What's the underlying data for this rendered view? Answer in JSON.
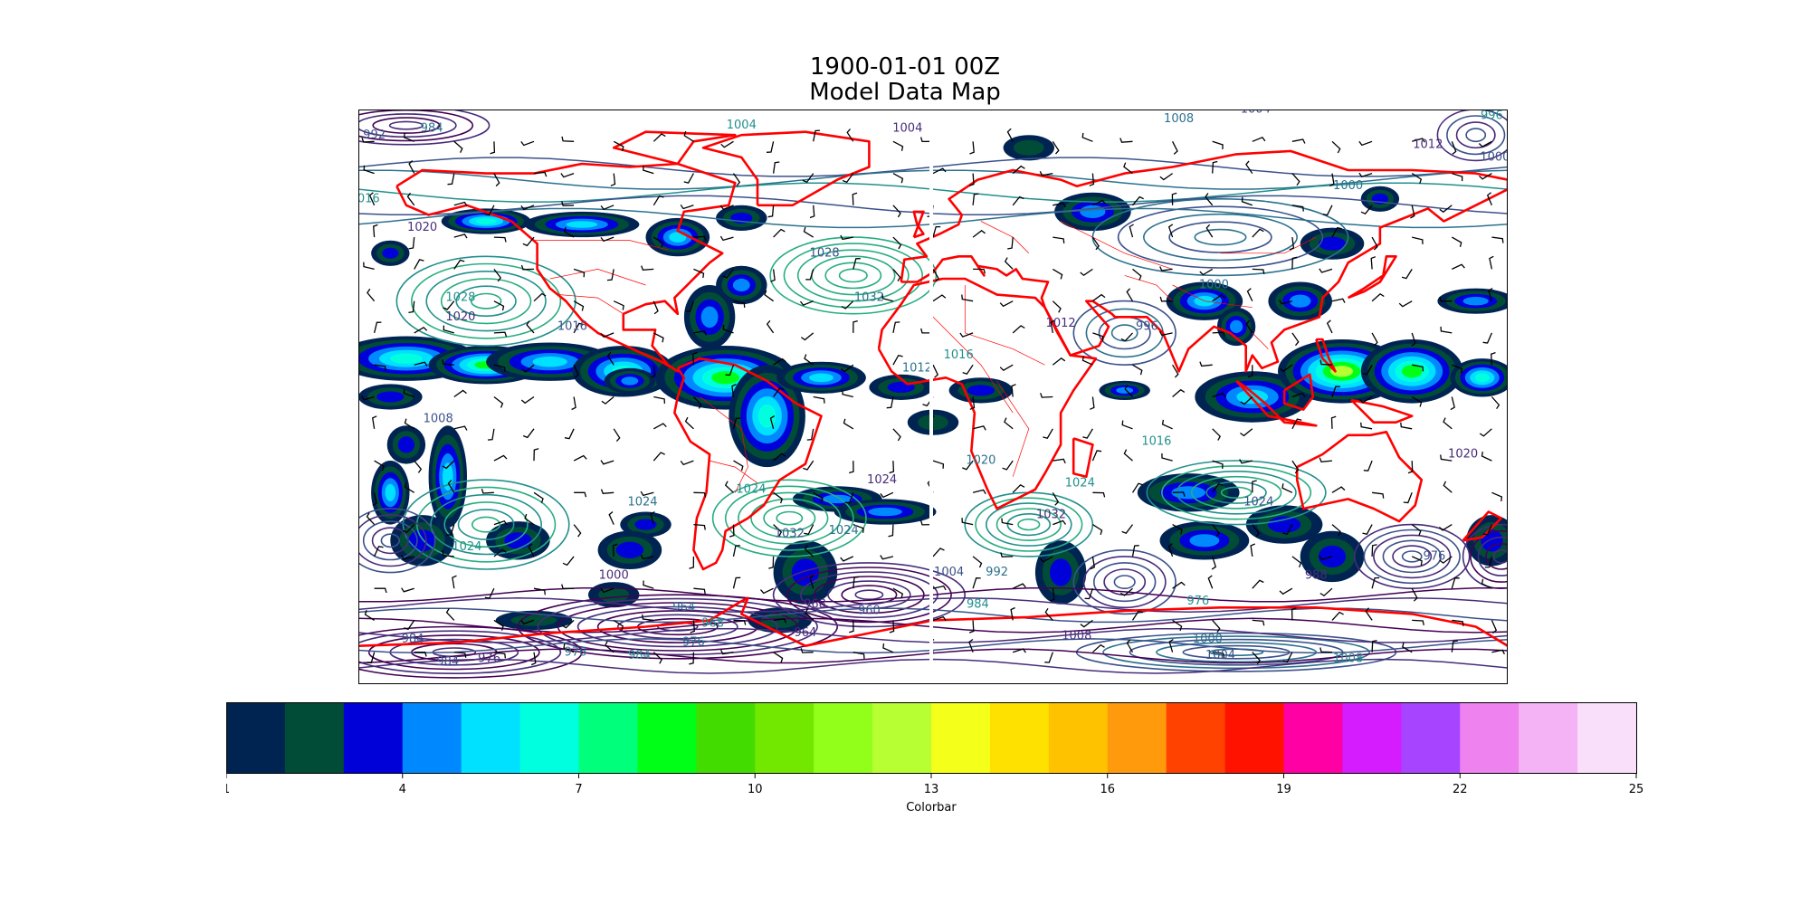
{
  "figure": {
    "title_line1": "1900-01-01 00Z",
    "title_line2": "Model Data Map"
  },
  "map": {
    "projection": "plate-carree",
    "extent_lon": [
      -180,
      180
    ],
    "extent_lat": [
      -90,
      90
    ],
    "layers": [
      {
        "name": "precipitation-filled-contours",
        "colormap": "gist_ncar"
      },
      {
        "name": "pressure-contours",
        "colormap": "viridis-dark"
      },
      {
        "name": "wind-barbs",
        "color": "#000000"
      },
      {
        "name": "coastlines",
        "color": "#ff0000"
      },
      {
        "name": "borders",
        "color": "#ff0000"
      }
    ],
    "contour_labels": [
      {
        "text": "992",
        "lon": -175,
        "lat": 81
      },
      {
        "text": "984",
        "lon": -157,
        "lat": 83
      },
      {
        "text": "1004",
        "lon": -60,
        "lat": 84
      },
      {
        "text": "1004",
        "lon": -8,
        "lat": 83
      },
      {
        "text": "1004",
        "lon": 101,
        "lat": 89
      },
      {
        "text": "1008",
        "lon": 77,
        "lat": 86
      },
      {
        "text": "996",
        "lon": 175,
        "lat": 87
      },
      {
        "text": "1012",
        "lon": 155,
        "lat": 78
      },
      {
        "text": "1000",
        "lon": 176,
        "lat": 74
      },
      {
        "text": "1000",
        "lon": 130,
        "lat": 65
      },
      {
        "text": "1016",
        "lon": -178,
        "lat": 61
      },
      {
        "text": "1020",
        "lon": -160,
        "lat": 52
      },
      {
        "text": "1028",
        "lon": -34,
        "lat": 44
      },
      {
        "text": "1032",
        "lon": -20,
        "lat": 30
      },
      {
        "text": "1028",
        "lon": -148,
        "lat": 30
      },
      {
        "text": "1020",
        "lon": -148,
        "lat": 24
      },
      {
        "text": "1016",
        "lon": -113,
        "lat": 21
      },
      {
        "text": "1012",
        "lon": -5,
        "lat": 8
      },
      {
        "text": "1016",
        "lon": 8,
        "lat": 12
      },
      {
        "text": "1012",
        "lon": 40,
        "lat": 22
      },
      {
        "text": "996",
        "lon": 67,
        "lat": 21
      },
      {
        "text": "1000",
        "lon": 88,
        "lat": 34
      },
      {
        "text": "1016",
        "lon": 70,
        "lat": -15
      },
      {
        "text": "1020",
        "lon": 166,
        "lat": -19
      },
      {
        "text": "1024",
        "lon": 102,
        "lat": -34
      },
      {
        "text": "1020",
        "lon": 15,
        "lat": -21
      },
      {
        "text": "1024",
        "lon": 46,
        "lat": -28
      },
      {
        "text": "1032",
        "lon": 37,
        "lat": -38
      },
      {
        "text": "1008",
        "lon": -155,
        "lat": -8
      },
      {
        "text": "1024",
        "lon": -91,
        "lat": -34
      },
      {
        "text": "1024",
        "lon": -57,
        "lat": -30
      },
      {
        "text": "1024",
        "lon": -16,
        "lat": -27
      },
      {
        "text": "1032",
        "lon": -45,
        "lat": -44
      },
      {
        "text": "1024",
        "lon": -28,
        "lat": -43
      },
      {
        "text": "1024",
        "lon": -146,
        "lat": -48
      },
      {
        "text": "1000",
        "lon": -100,
        "lat": -57
      },
      {
        "text": "1004",
        "lon": 5,
        "lat": -56
      },
      {
        "text": "992",
        "lon": 20,
        "lat": -56
      },
      {
        "text": "984",
        "lon": 14,
        "lat": -66
      },
      {
        "text": "968",
        "lon": -37,
        "lat": -66
      },
      {
        "text": "960",
        "lon": -20,
        "lat": -68
      },
      {
        "text": "964",
        "lon": -78,
        "lat": -67
      },
      {
        "text": "968",
        "lon": -69,
        "lat": -72
      },
      {
        "text": "964",
        "lon": -40,
        "lat": -75
      },
      {
        "text": "984",
        "lon": -163,
        "lat": -77
      },
      {
        "text": "976",
        "lon": -112,
        "lat": -81
      },
      {
        "text": "984",
        "lon": -92,
        "lat": -82
      },
      {
        "text": "976",
        "lon": -139,
        "lat": -83
      },
      {
        "text": "984",
        "lon": -152,
        "lat": -84
      },
      {
        "text": "976",
        "lon": -75,
        "lat": -78
      },
      {
        "text": "976",
        "lon": 83,
        "lat": -65
      },
      {
        "text": "1008",
        "lon": 45,
        "lat": -76
      },
      {
        "text": "1004",
        "lon": 90,
        "lat": -82
      },
      {
        "text": "1000",
        "lon": 86,
        "lat": -77
      },
      {
        "text": "1008",
        "lon": 130,
        "lat": -83
      },
      {
        "text": "988",
        "lon": 120,
        "lat": -57
      },
      {
        "text": "976",
        "lon": 157,
        "lat": -51
      }
    ]
  },
  "colorbar": {
    "label": "Colorbar",
    "vmin": 1,
    "vmax": 25,
    "tick_labels": [
      "1",
      "4",
      "7",
      "10",
      "13",
      "16",
      "19",
      "22",
      "25"
    ],
    "colors": [
      "#002452",
      "#004c36",
      "#0000d9",
      "#0088ff",
      "#00e0ff",
      "#00ffdf",
      "#00ff7a",
      "#00ff17",
      "#43dc00",
      "#72e800",
      "#91ff1a",
      "#b7ff33",
      "#f4ff1a",
      "#ffe100",
      "#ffc200",
      "#ff9a0d",
      "#ff4200",
      "#ff1300",
      "#ff00a4",
      "#d41cff",
      "#a744ff",
      "#ee82ee",
      "#f4b3f4",
      "#f9dff9"
    ]
  }
}
